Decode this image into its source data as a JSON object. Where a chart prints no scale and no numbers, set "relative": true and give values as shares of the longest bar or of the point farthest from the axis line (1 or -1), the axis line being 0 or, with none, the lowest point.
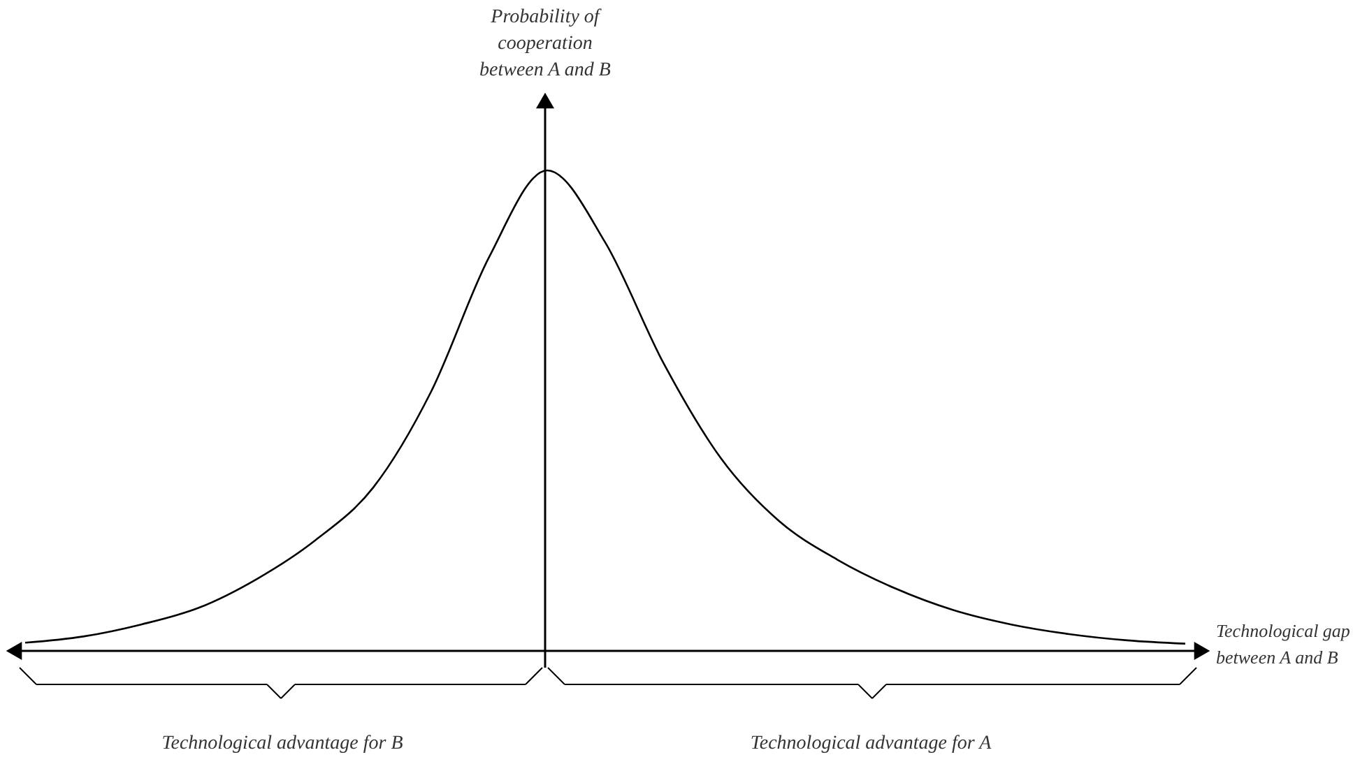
{
  "chart_data": {
    "type": "line",
    "relative": true,
    "xlabel": "Technological gap between A and B",
    "ylabel": "Probability of cooperation between A and B",
    "categories": [
      null,
      null,
      null,
      null,
      null,
      null,
      null,
      null,
      null,
      null,
      null,
      null,
      null,
      null,
      null,
      null,
      null,
      null,
      null,
      null,
      null
    ],
    "values": [
      0.017,
      0.03,
      0.055,
      0.09,
      0.15,
      0.23,
      0.34,
      0.54,
      0.82,
      1,
      0.85,
      0.6,
      0.4,
      0.27,
      0.19,
      0.13,
      0.085,
      0.055,
      0.035,
      0.022,
      0.015
    ],
    "color": "#000000",
    "marker": "none",
    "annotations": [
      "Technological advantage for B",
      "Technological advantage for A"
    ]
  }
}
